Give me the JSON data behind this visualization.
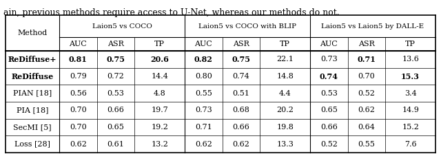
{
  "col_groups": [
    "Laion5 vs COCO",
    "Laion5 vs COCO with BLIP",
    "Laion5 vs Laion5 by DALL-E"
  ],
  "sub_cols": [
    "AUC",
    "ASR",
    "TP"
  ],
  "methods": [
    "Loss [28]",
    "SecMI [5]",
    "PIA [18]",
    "PIAN [18]",
    "ReDiffuse",
    "ReDiffuse+"
  ],
  "methods_bold": [
    false,
    false,
    false,
    false,
    true,
    true
  ],
  "methods_smallcaps": [
    false,
    false,
    false,
    false,
    true,
    true
  ],
  "data": [
    [
      "0.62",
      "0.61",
      "13.2",
      "0.62",
      "0.62",
      "13.3",
      "0.52",
      "0.55",
      "7.6"
    ],
    [
      "0.70",
      "0.65",
      "19.2",
      "0.71",
      "0.66",
      "19.8",
      "0.66",
      "0.64",
      "15.2"
    ],
    [
      "0.70",
      "0.66",
      "19.7",
      "0.73",
      "0.68",
      "20.2",
      "0.65",
      "0.62",
      "14.9"
    ],
    [
      "0.56",
      "0.53",
      "4.8",
      "0.55",
      "0.51",
      "4.4",
      "0.53",
      "0.52",
      "3.4"
    ],
    [
      "0.79",
      "0.72",
      "14.4",
      "0.80",
      "0.74",
      "14.8",
      "0.74",
      "0.70",
      "15.3"
    ],
    [
      "0.81",
      "0.75",
      "20.6",
      "0.82",
      "0.75",
      "22.1",
      "0.73",
      "0.71",
      "13.6"
    ]
  ],
  "bold_cells": [
    [
      false,
      false,
      false,
      false,
      false,
      false,
      false,
      false,
      false
    ],
    [
      false,
      false,
      false,
      false,
      false,
      false,
      false,
      false,
      false
    ],
    [
      false,
      false,
      false,
      false,
      false,
      false,
      false,
      false,
      false
    ],
    [
      false,
      false,
      false,
      false,
      false,
      false,
      false,
      false,
      false
    ],
    [
      false,
      false,
      false,
      false,
      false,
      false,
      true,
      false,
      true
    ],
    [
      true,
      true,
      true,
      true,
      true,
      false,
      false,
      true,
      false
    ]
  ],
  "caption_text": "ain, previous methods require access to U-Net, whereas our methods do not.",
  "caption_fontsize": 9.0,
  "font_size": 8.0,
  "header_font_size": 8.0,
  "background_color": "#ffffff"
}
